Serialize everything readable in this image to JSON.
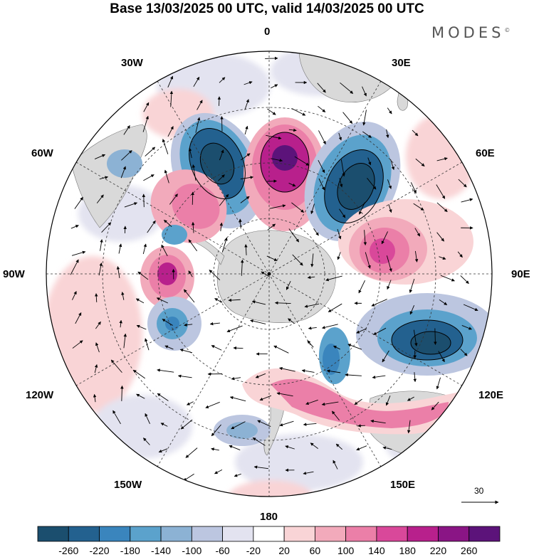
{
  "header": {
    "title": "Base 13/03/2025 00 UTC, valid 14/03/2025 00 UTC",
    "brand": "MODES",
    "brand_mark": "©"
  },
  "map": {
    "projection": "south-polar-stereographic",
    "longitude_labels": {
      "top": "0",
      "top_left": "30W",
      "top_right": "30E",
      "upper_left": "60W",
      "upper_right": "60E",
      "left": "90W",
      "right": "90E",
      "lower_left": "120W",
      "lower_right": "120E",
      "bottom_left": "150W",
      "bottom_right": "150E",
      "bottom": "180"
    },
    "reference_vector": {
      "label": "30"
    },
    "colors": {
      "land": "#d9d9d9",
      "positive_strong": "#6a1a80",
      "negative_strong": "#1b4e6e",
      "neutral": "#ffffff"
    },
    "vector_field": "wind vectors (arrows)"
  },
  "colorbar": {
    "levels": [
      "-260",
      "-220",
      "-180",
      "-140",
      "-100",
      "-60",
      "-20",
      "20",
      "60",
      "100",
      "140",
      "180",
      "220",
      "260"
    ],
    "colors": [
      "#1b4e6e",
      "#23618f",
      "#3a85bd",
      "#5ba2cc",
      "#8cb2d4",
      "#bcc6e0",
      "#e3e3f0",
      "#ffffff",
      "#f9d4d6",
      "#f2aabb",
      "#eb7fa8",
      "#d9489a",
      "#b8208c",
      "#8a1585",
      "#5c137a"
    ]
  }
}
